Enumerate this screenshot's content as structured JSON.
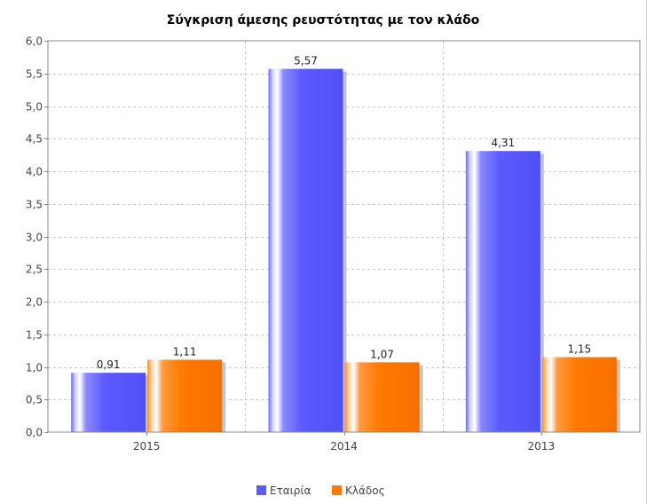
{
  "chart_data": {
    "type": "bar",
    "title": "Σύγκριση άμεσης ρευστότητας με τον κλάδο",
    "xlabel": "",
    "ylabel": "",
    "categories": [
      "2015",
      "2014",
      "2013"
    ],
    "series": [
      {
        "name": "Εταιρία",
        "values": [
          0.91,
          5.57,
          4.31
        ],
        "labels": [
          "0,91",
          "5,57",
          "4,31"
        ],
        "color": "#5a5aff"
      },
      {
        "name": "Κλάδος",
        "values": [
          1.11,
          1.07,
          1.15
        ],
        "labels": [
          "1,11",
          "1,07",
          "1,15"
        ],
        "color": "#ff7a00"
      }
    ],
    "ylim": [
      0,
      6
    ],
    "yticks": [
      0,
      0.5,
      1.0,
      1.5,
      2.0,
      2.5,
      3.0,
      3.5,
      4.0,
      4.5,
      5.0,
      5.5,
      6.0
    ],
    "ytick_labels": [
      "0,0",
      "0,5",
      "1,0",
      "1,5",
      "2,0",
      "2,5",
      "3,0",
      "3,5",
      "4,0",
      "4,5",
      "5,0",
      "5,5",
      "6,0"
    ],
    "grid": true,
    "legend_position": "bottom"
  }
}
